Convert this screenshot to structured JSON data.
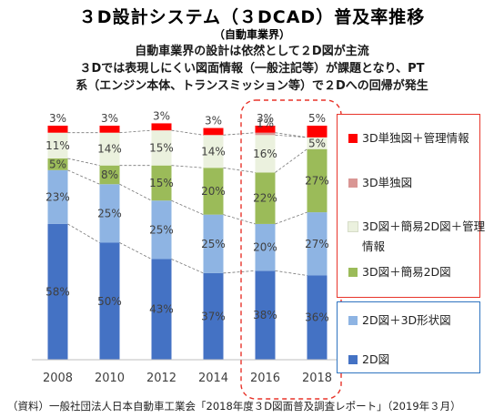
{
  "header": {
    "title": "３D設計システム（３DCAD）普及率推移",
    "subtitle": "（自動車業界）",
    "note_lines": [
      "自動車業界の設計は依然として２D図が主流",
      "３Dでは表現しにくい図面情報（一般注記等）が課題となり、PT",
      "系（エンジン本体、トランスミッション等）で２Dへの回帰が発生"
    ]
  },
  "chart_data": {
    "type": "bar",
    "stacked": true,
    "categories": [
      "2008",
      "2010",
      "2012",
      "2014",
      "2016",
      "2018"
    ],
    "ylim": [
      0,
      100
    ],
    "series": [
      {
        "name": "2D図",
        "color": "#4472c4",
        "values": [
          58,
          50,
          43,
          37,
          38,
          36
        ],
        "labels": [
          "58%",
          "50%",
          "43%",
          "37%",
          "38%",
          "36%"
        ]
      },
      {
        "name": "2D図＋3D形状図",
        "color": "#8eb4e3",
        "values": [
          23,
          25,
          25,
          25,
          20,
          27
        ],
        "labels": [
          "23%",
          "25%",
          "25%",
          "25%",
          "20%",
          "27%"
        ]
      },
      {
        "name": "3D図＋簡易2D図",
        "color": "#9bbb59",
        "values": [
          5,
          8,
          15,
          20,
          22,
          27
        ],
        "labels": [
          "5%",
          "8%",
          "15%",
          "20%",
          "22%",
          "27%"
        ]
      },
      {
        "name": "3D図＋簡易2D図＋管理情報",
        "color": "#ebf1de",
        "values": [
          11,
          14,
          15,
          14,
          16,
          5
        ],
        "labels": [
          "11%",
          "14%",
          "15%",
          "14%",
          "16%",
          "5%"
        ]
      },
      {
        "name": "3D単独図",
        "color": "#d99694",
        "values": [
          0,
          0,
          0,
          0,
          1,
          0
        ],
        "labels": [
          "",
          "",
          "",
          "",
          "1%",
          ""
        ]
      },
      {
        "name": "3D単独図＋管理情報",
        "color": "#ff0000",
        "values": [
          3,
          3,
          3,
          3,
          3,
          5
        ],
        "labels": [
          "3%",
          "3%",
          "3%",
          "3%",
          "3%",
          "5%"
        ]
      }
    ],
    "legend_group_1": [
      "3D単独図＋管理情報",
      "3D単独図",
      "3D図＋簡易2D図＋管理情報",
      "3D図＋簡易2D図"
    ],
    "legend_group_2": [
      "2D図＋3D形状図",
      "2D図"
    ],
    "legend_item_3_lines": [
      "3D図＋簡易2D図＋管理",
      "情報"
    ],
    "highlight_categories": [
      "2016",
      "2018"
    ],
    "grid": false
  },
  "footer": {
    "source": "（資料）一般社団法人日本自動車工業会「2018年度３D図面普及調査レポート」（2019年３月）"
  },
  "colors": {
    "highlight_border": "#e8342a",
    "legend_blue_border": "#2f74c0",
    "connector": "#777777"
  }
}
